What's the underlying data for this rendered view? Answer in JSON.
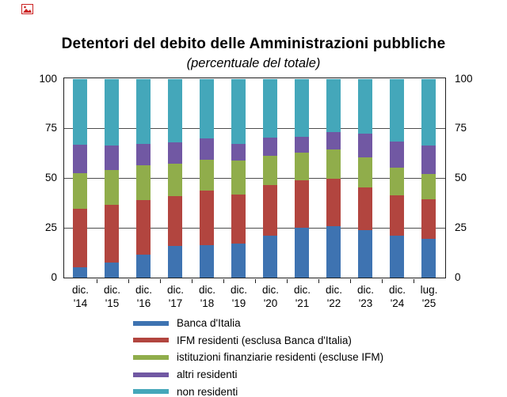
{
  "page": {
    "icons": {
      "top_left": "broken-image-icon"
    },
    "icon_color": "#cc2222"
  },
  "chart": {
    "title": "Detentori del debito delle Amministrazioni pubbliche",
    "subtitle": "(percentuale del totale)"
  },
  "chart_data": {
    "type": "bar",
    "stacked": true,
    "title": "Detentori del debito delle Amministrazioni pubbliche",
    "subtitle": "(percentuale del totale)",
    "categories": [
      "dic. '14",
      "dic. '15",
      "dic. '16",
      "dic. '17",
      "dic. '18",
      "dic. '19",
      "dic. '20",
      "dic. '21",
      "dic. '22",
      "dic. '23",
      "dic. '24",
      "lug. '25"
    ],
    "series": [
      {
        "name": "Banca d'Italia",
        "color": "#3E73B1",
        "values": [
          5,
          7.5,
          11.5,
          16,
          16.5,
          17,
          21,
          25,
          26,
          24,
          21,
          19.5
        ]
      },
      {
        "name": "IFM residenti (esclusa Banca d'Italia)",
        "color": "#B2453F",
        "values": [
          29.5,
          29,
          27.5,
          25,
          27.5,
          25,
          25.5,
          24,
          24,
          21.5,
          20.5,
          20
        ]
      },
      {
        "name": "istituzioni finanziarie residenti (escluse IFM)",
        "color": "#90AD4B",
        "values": [
          18,
          17.5,
          17.5,
          16.5,
          15.5,
          17,
          15,
          14,
          14.5,
          15,
          14,
          12.5
        ]
      },
      {
        "name": "altri residenti",
        "color": "#7158A3",
        "values": [
          14.5,
          12.5,
          11,
          10.5,
          10.5,
          8.5,
          9,
          8,
          9,
          12,
          13,
          14.5
        ]
      },
      {
        "name": "non residenti",
        "color": "#44A7BA",
        "values": [
          33,
          33.5,
          32.5,
          32,
          30,
          32.5,
          29.5,
          29,
          26.5,
          27.5,
          31.5,
          33.5
        ]
      }
    ],
    "ylim": [
      0,
      100
    ],
    "y_ticks": [
      0,
      25,
      50,
      75,
      100
    ],
    "grid_values": [
      25,
      50,
      75
    ],
    "grid": "horizontal",
    "legend_position": "bottom-left",
    "axis_color": "#1f1f1f",
    "grid_color": "#4d4d4d"
  }
}
